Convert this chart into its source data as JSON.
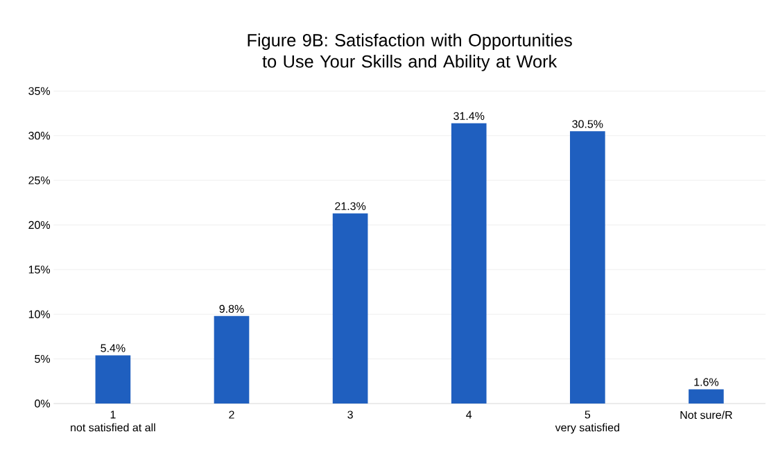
{
  "chart_data": {
    "type": "bar",
    "title": "Figure 9B: Satisfaction with Opportunities to Use Your Skills and Ability at Work",
    "categories": [
      "1\nnot satisfied at all",
      "2",
      "3",
      "4",
      "5\nvery satisfied",
      "Not sure/R"
    ],
    "values": [
      5.4,
      9.8,
      21.3,
      31.4,
      30.5,
      1.6
    ],
    "value_labels": [
      "5.4%",
      "9.8%",
      "21.3%",
      "31.4%",
      "30.5%",
      "1.6%"
    ],
    "color": "#1f5fbf",
    "ylim": [
      0,
      35
    ],
    "yticks": [
      {
        "value": 0,
        "label": "0%"
      },
      {
        "value": 5,
        "label": "5%"
      },
      {
        "value": 10,
        "label": "10%"
      },
      {
        "value": 15,
        "label": "15%"
      },
      {
        "value": 20,
        "label": "20%"
      },
      {
        "value": 25,
        "label": "25%"
      },
      {
        "value": 30,
        "label": "30%"
      },
      {
        "value": 35,
        "label": "35%"
      }
    ],
    "grid": "y"
  }
}
